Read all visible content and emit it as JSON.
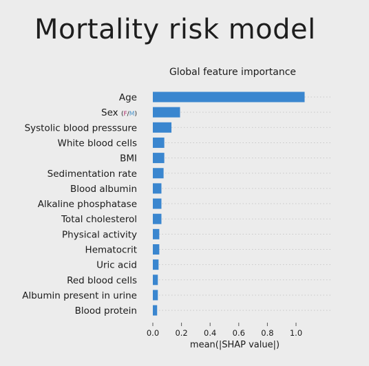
{
  "slide": {
    "title": "Mortality risk model"
  },
  "colors": {
    "bar": "#3a86cf",
    "grid": "#c8c8c8",
    "female": "#b0306a",
    "male": "#4a93c9",
    "background": "#ececec"
  },
  "chart_data": {
    "type": "bar",
    "orientation": "horizontal",
    "title": "Global feature importance",
    "xlabel": "mean(|SHAP value|)",
    "ylabel": "",
    "xlim": [
      0.0,
      1.1
    ],
    "xticks": [
      0.0,
      0.2,
      0.4,
      0.6,
      0.8,
      1.0
    ],
    "xtick_labels": [
      "0.0",
      "0.2",
      "0.4",
      "0.6",
      "0.8",
      "1.0"
    ],
    "grid": "dotted horizontal per category",
    "categories": [
      "Age",
      "Sex",
      "Systolic blood presssure",
      "White blood cells",
      "BMI",
      "Sedimentation rate",
      "Blood albumin",
      "Alkaline phosphatase",
      "Total cholesterol",
      "Physical activity",
      "Hematocrit",
      "Uric acid",
      "Red blood cells",
      "Albumin present in urine",
      "Blood protein"
    ],
    "sex_annotation": {
      "open": "(",
      "female": "F",
      "sep": "/",
      "male": "M",
      "close": ")"
    },
    "values": [
      1.06,
      0.19,
      0.13,
      0.08,
      0.08,
      0.075,
      0.06,
      0.06,
      0.06,
      0.045,
      0.045,
      0.04,
      0.035,
      0.035,
      0.03
    ]
  }
}
